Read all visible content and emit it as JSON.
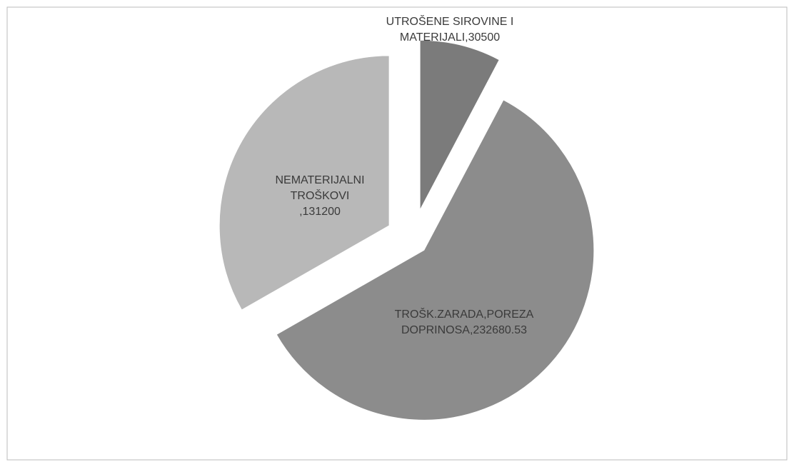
{
  "chart_data": {
    "type": "pie",
    "categories": [
      "UTROŠENE SIROVINE I MATERIJALI",
      "TROŠK.ZARADA,POREZA DOPRINOSA",
      "NEMATERIJALNI TROŠKOVI"
    ],
    "values": [
      30500,
      232680.53,
      131200
    ],
    "value_labels": [
      ",30500",
      ",232680.53",
      ",131200"
    ],
    "colors": [
      "#7b7b7b",
      "#8c8c8c",
      "#b8b8b8"
    ]
  }
}
